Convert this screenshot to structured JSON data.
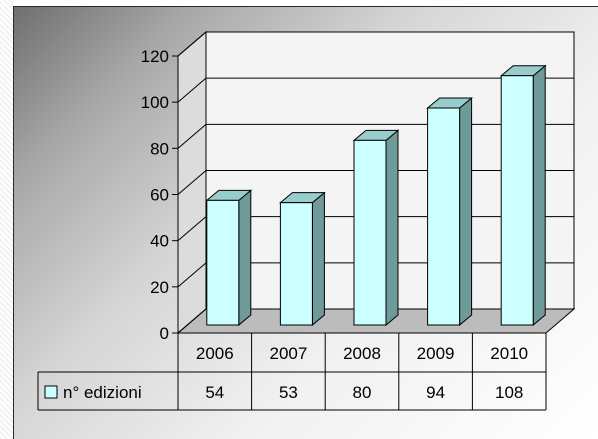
{
  "chart_data": {
    "type": "bar",
    "style": "3d-column-with-data-table",
    "categories": [
      "2006",
      "2007",
      "2008",
      "2009",
      "2010"
    ],
    "series": [
      {
        "name": "n° edizioni",
        "values": [
          54,
          53,
          80,
          94,
          108
        ],
        "color": "#ccffff"
      }
    ],
    "ylim": [
      0,
      120
    ],
    "yticks": [
      0,
      20,
      40,
      60,
      80,
      100,
      120
    ],
    "title": "",
    "xlabel": "",
    "ylabel": "",
    "grid": true,
    "legend": "data-table-left"
  },
  "colors": {
    "bar_face": "#ccffff",
    "bar_side": "#6f9a9a",
    "bar_top": "#99cccc",
    "wall": "#f4f4f4",
    "floor": "#bcbcbc"
  }
}
